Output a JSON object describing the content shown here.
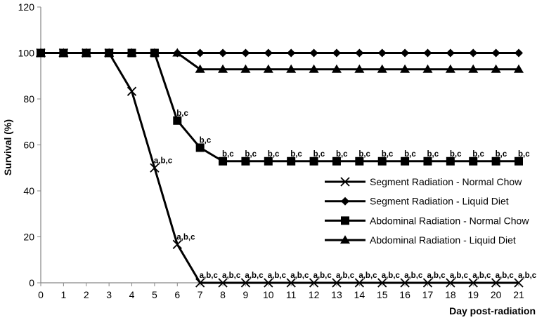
{
  "chart_data": {
    "type": "line",
    "xlabel": "Day post-radiation",
    "ylabel": "Survival (%)",
    "xlim": [
      0,
      21
    ],
    "ylim": [
      0,
      120
    ],
    "x_ticks": [
      0,
      1,
      2,
      3,
      4,
      5,
      6,
      7,
      8,
      9,
      10,
      11,
      12,
      13,
      14,
      15,
      16,
      17,
      18,
      19,
      20,
      21
    ],
    "y_ticks": [
      0,
      20,
      40,
      60,
      80,
      100,
      120
    ],
    "grid": false,
    "legend_position": "lower-right",
    "x": [
      0,
      1,
      2,
      3,
      4,
      5,
      6,
      7,
      8,
      9,
      10,
      11,
      12,
      13,
      14,
      15,
      16,
      17,
      18,
      19,
      20,
      21
    ],
    "series": [
      {
        "name": "Segment Radiation - Normal Chow",
        "marker": "x",
        "values": [
          100,
          100,
          100,
          100,
          83.3,
          50,
          16.7,
          0,
          0,
          0,
          0,
          0,
          0,
          0,
          0,
          0,
          0,
          0,
          0,
          0,
          0,
          0
        ],
        "point_labels": [
          "",
          "",
          "",
          "",
          "",
          "a,b,c",
          "a,b,c",
          "a,b,c",
          "a,b,c",
          "a,b,c",
          "a,b,c",
          "a,b,c",
          "a,b,c",
          "a,b,c",
          "a,b,c",
          "a,b,c",
          "a,b,c",
          "a,b,c",
          "a,b,c",
          "a,b,c",
          "a,b,c",
          "a,b,c"
        ]
      },
      {
        "name": "Segment Radiation - Liquid Diet",
        "marker": "diamond",
        "values": [
          100,
          100,
          100,
          100,
          100,
          100,
          100,
          100,
          100,
          100,
          100,
          100,
          100,
          100,
          100,
          100,
          100,
          100,
          100,
          100,
          100,
          100
        ],
        "point_labels": []
      },
      {
        "name": "Abdominal Radiation - Normal Chow",
        "marker": "square",
        "values": [
          100,
          100,
          100,
          100,
          100,
          100,
          70.6,
          58.8,
          52.9,
          52.9,
          52.9,
          52.9,
          52.9,
          52.9,
          52.9,
          52.9,
          52.9,
          52.9,
          52.9,
          52.9,
          52.9,
          52.9
        ],
        "point_labels": [
          "",
          "",
          "",
          "",
          "",
          "",
          "b,c",
          "b,c",
          "b,c",
          "b,c",
          "b,c",
          "b,c",
          "b,c",
          "b,c",
          "b,c",
          "b,c",
          "b,c",
          "b,c",
          "b,c",
          "b,c",
          "b,c",
          "b,c"
        ]
      },
      {
        "name": "Abdominal Radiation - Liquid Diet",
        "marker": "triangle",
        "values": [
          100,
          100,
          100,
          100,
          100,
          100,
          100,
          92.9,
          92.9,
          92.9,
          92.9,
          92.9,
          92.9,
          92.9,
          92.9,
          92.9,
          92.9,
          92.9,
          92.9,
          92.9,
          92.9,
          92.9
        ],
        "point_labels": []
      }
    ]
  }
}
